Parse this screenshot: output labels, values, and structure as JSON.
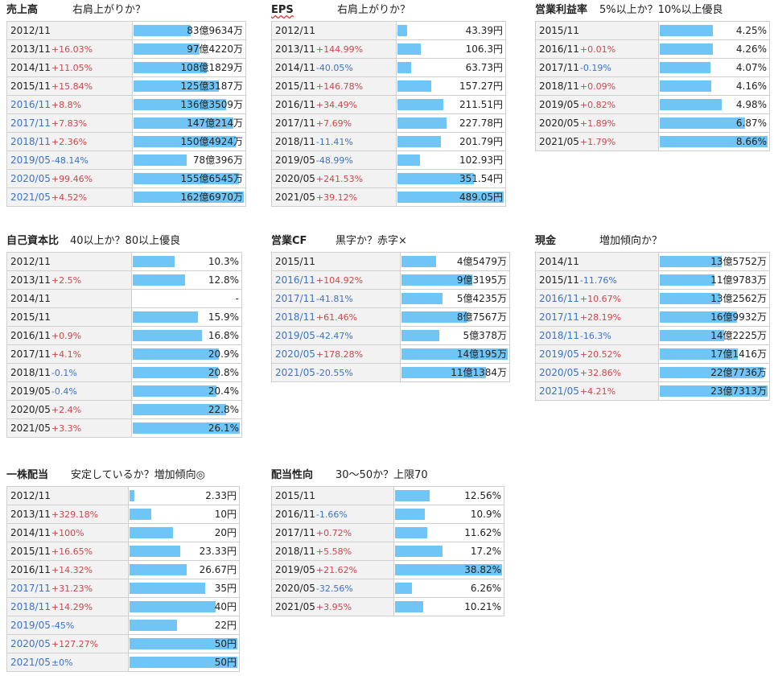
{
  "panels": [
    {
      "id": "sales",
      "title": "売上高",
      "subtitle": "右肩上がりか？",
      "rows": [
        {
          "year": "2012/11",
          "change": "",
          "value": "83億9634万",
          "num": 83.96,
          "blue": false
        },
        {
          "year": "2013/11",
          "change": "+16.03%",
          "value": "97億4220万",
          "num": 97.42,
          "blue": false
        },
        {
          "year": "2014/11",
          "change": "+11.05%",
          "value": "108億1829万",
          "num": 108.18,
          "blue": false
        },
        {
          "year": "2015/11",
          "change": "+15.84%",
          "value": "125億3187万",
          "num": 125.32,
          "blue": false
        },
        {
          "year": "2016/11",
          "change": "+8.8%",
          "value": "136億3509万",
          "num": 136.35,
          "blue": true
        },
        {
          "year": "2017/11",
          "change": "+7.83%",
          "value": "147億214万",
          "num": 147.02,
          "blue": true
        },
        {
          "year": "2018/11",
          "change": "+2.36%",
          "value": "150億4924万",
          "num": 150.49,
          "blue": true
        },
        {
          "year": "2019/05",
          "change": "-48.14%",
          "value": "78億396万",
          "num": 78.04,
          "blue": true
        },
        {
          "year": "2020/05",
          "change": "+99.46%",
          "value": "155億6545万",
          "num": 155.65,
          "blue": true
        },
        {
          "year": "2021/05",
          "change": "+4.52%",
          "value": "162億6970万",
          "num": 162.7,
          "blue": true
        }
      ]
    },
    {
      "id": "eps",
      "title": "EPS",
      "subtitle": "右肩上がりか？",
      "rows": [
        {
          "year": "2012/11",
          "change": "",
          "value": "43.39円",
          "num": 43.39,
          "blue": false
        },
        {
          "year": "2013/11",
          "change": "+144.99%",
          "value": "106.3円",
          "num": 106.3,
          "blue": false
        },
        {
          "year": "2014/11",
          "change": "-40.05%",
          "value": "63.73円",
          "num": 63.73,
          "blue": false
        },
        {
          "year": "2015/11",
          "change": "+146.78%",
          "value": "157.27円",
          "num": 157.27,
          "blue": false
        },
        {
          "year": "2016/11",
          "change": "+34.49%",
          "value": "211.51円",
          "num": 211.51,
          "blue": false
        },
        {
          "year": "2017/11",
          "change": "+7.69%",
          "value": "227.78円",
          "num": 227.78,
          "blue": false
        },
        {
          "year": "2018/11",
          "change": "-11.41%",
          "value": "201.79円",
          "num": 201.79,
          "blue": false
        },
        {
          "year": "2019/05",
          "change": "-48.99%",
          "value": "102.93円",
          "num": 102.93,
          "blue": false
        },
        {
          "year": "2020/05",
          "change": "+241.53%",
          "value": "351.54円",
          "num": 351.54,
          "blue": false
        },
        {
          "year": "2021/05",
          "change": "+39.12%",
          "value": "489.05円",
          "num": 489.05,
          "blue": false
        }
      ]
    },
    {
      "id": "margin",
      "title": "営業利益率",
      "subtitle": "5%以上か？10%以上優良",
      "rows": [
        {
          "year": "2015/11",
          "change": "",
          "value": "4.25%",
          "num": 4.25,
          "blue": false
        },
        {
          "year": "2016/11",
          "change": "+0.01%",
          "value": "4.26%",
          "num": 4.26,
          "blue": false
        },
        {
          "year": "2017/11",
          "change": "-0.19%",
          "value": "4.07%",
          "num": 4.07,
          "blue": false
        },
        {
          "year": "2018/11",
          "change": "+0.09%",
          "value": "4.16%",
          "num": 4.16,
          "blue": false
        },
        {
          "year": "2019/05",
          "change": "+0.82%",
          "value": "4.98%",
          "num": 4.98,
          "blue": false
        },
        {
          "year": "2020/05",
          "change": "+1.89%",
          "value": "6.87%",
          "num": 6.87,
          "blue": false
        },
        {
          "year": "2021/05",
          "change": "+1.79%",
          "value": "8.66%",
          "num": 8.66,
          "blue": false
        }
      ]
    },
    {
      "id": "equity",
      "title": "自己資本比",
      "subtitle": "40以上か？80以上優良",
      "rows": [
        {
          "year": "2012/11",
          "change": "",
          "value": "10.3%",
          "num": 10.3,
          "blue": false
        },
        {
          "year": "2013/11",
          "change": "+2.5%",
          "value": "12.8%",
          "num": 12.8,
          "blue": false
        },
        {
          "year": "2014/11",
          "change": "",
          "value": "-",
          "num": 0,
          "blue": false
        },
        {
          "year": "2015/11",
          "change": "",
          "value": "15.9%",
          "num": 15.9,
          "blue": false
        },
        {
          "year": "2016/11",
          "change": "+0.9%",
          "value": "16.8%",
          "num": 16.8,
          "blue": false
        },
        {
          "year": "2017/11",
          "change": "+4.1%",
          "value": "20.9%",
          "num": 20.9,
          "blue": false
        },
        {
          "year": "2018/11",
          "change": "-0.1%",
          "value": "20.8%",
          "num": 20.8,
          "blue": false
        },
        {
          "year": "2019/05",
          "change": "-0.4%",
          "value": "20.4%",
          "num": 20.4,
          "blue": false
        },
        {
          "year": "2020/05",
          "change": "+2.4%",
          "value": "22.8%",
          "num": 22.8,
          "blue": false
        },
        {
          "year": "2021/05",
          "change": "+3.3%",
          "value": "26.1%",
          "num": 26.1,
          "blue": false
        }
      ]
    },
    {
      "id": "opcf",
      "title": "営業CF",
      "subtitle": "黒字か？赤字×",
      "rows": [
        {
          "year": "2015/11",
          "change": "",
          "value": "4億5479万",
          "num": 4.55,
          "blue": false
        },
        {
          "year": "2016/11",
          "change": "+104.92%",
          "value": "9億3195万",
          "num": 9.32,
          "blue": true
        },
        {
          "year": "2017/11",
          "change": "-41.81%",
          "value": "5億4235万",
          "num": 5.42,
          "blue": true
        },
        {
          "year": "2018/11",
          "change": "+61.46%",
          "value": "8億7567万",
          "num": 8.76,
          "blue": true
        },
        {
          "year": "2019/05",
          "change": "-42.47%",
          "value": "5億378万",
          "num": 5.04,
          "blue": true
        },
        {
          "year": "2020/05",
          "change": "+178.28%",
          "value": "14億195万",
          "num": 14.02,
          "blue": true
        },
        {
          "year": "2021/05",
          "change": "-20.55%",
          "value": "11億1384万",
          "num": 11.14,
          "blue": true
        }
      ]
    },
    {
      "id": "cash",
      "title": "現金",
      "subtitle": "増加傾向か？",
      "rows": [
        {
          "year": "2014/11",
          "change": "",
          "value": "13億5752万",
          "num": 13.58,
          "blue": false
        },
        {
          "year": "2015/11",
          "change": "-11.76%",
          "value": "11億9783万",
          "num": 11.98,
          "blue": false
        },
        {
          "year": "2016/11",
          "change": "+10.67%",
          "value": "13億2562万",
          "num": 13.26,
          "blue": true
        },
        {
          "year": "2017/11",
          "change": "+28.19%",
          "value": "16億9932万",
          "num": 16.99,
          "blue": true
        },
        {
          "year": "2018/11",
          "change": "-16.3%",
          "value": "14億2225万",
          "num": 14.22,
          "blue": true
        },
        {
          "year": "2019/05",
          "change": "+20.52%",
          "value": "17億1416万",
          "num": 17.14,
          "blue": true
        },
        {
          "year": "2020/05",
          "change": "+32.86%",
          "value": "22億7736万",
          "num": 22.77,
          "blue": true
        },
        {
          "year": "2021/05",
          "change": "+4.21%",
          "value": "23億7313万",
          "num": 23.73,
          "blue": true
        }
      ]
    },
    {
      "id": "dividend",
      "title": "一株配当",
      "subtitle": "安定しているか？増加傾向◎",
      "rows": [
        {
          "year": "2012/11",
          "change": "",
          "value": "2.33円",
          "num": 2.33,
          "blue": false
        },
        {
          "year": "2013/11",
          "change": "+329.18%",
          "value": "10円",
          "num": 10,
          "blue": false
        },
        {
          "year": "2014/11",
          "change": "+100%",
          "value": "20円",
          "num": 20,
          "blue": false
        },
        {
          "year": "2015/11",
          "change": "+16.65%",
          "value": "23.33円",
          "num": 23.33,
          "blue": false
        },
        {
          "year": "2016/11",
          "change": "+14.32%",
          "value": "26.67円",
          "num": 26.67,
          "blue": false
        },
        {
          "year": "2017/11",
          "change": "+31.23%",
          "value": "35円",
          "num": 35,
          "blue": true
        },
        {
          "year": "2018/11",
          "change": "+14.29%",
          "value": "40円",
          "num": 40,
          "blue": true
        },
        {
          "year": "2019/05",
          "change": "-45%",
          "value": "22円",
          "num": 22,
          "blue": true
        },
        {
          "year": "2020/05",
          "change": "+127.27%",
          "value": "50円",
          "num": 50,
          "blue": true
        },
        {
          "year": "2021/05",
          "change": "±0%",
          "value": "50円",
          "num": 50,
          "blue": true
        }
      ]
    },
    {
      "id": "payout",
      "title": "配当性向",
      "subtitle": "30〜50か？上限70",
      "rows": [
        {
          "year": "2015/11",
          "change": "",
          "value": "12.56%",
          "num": 12.56,
          "blue": false
        },
        {
          "year": "2016/11",
          "change": "-1.66%",
          "value": "10.9%",
          "num": 10.9,
          "blue": false
        },
        {
          "year": "2017/11",
          "change": "+0.72%",
          "value": "11.62%",
          "num": 11.62,
          "blue": false
        },
        {
          "year": "2018/11",
          "change": "+5.58%",
          "value": "17.2%",
          "num": 17.2,
          "blue": false
        },
        {
          "year": "2019/05",
          "change": "+21.62%",
          "value": "38.82%",
          "num": 38.82,
          "blue": false
        },
        {
          "year": "2020/05",
          "change": "-32.56%",
          "value": "6.26%",
          "num": 6.26,
          "blue": false
        },
        {
          "year": "2021/05",
          "change": "+3.95%",
          "value": "10.21%",
          "num": 10.21,
          "blue": false
        }
      ]
    }
  ],
  "colors": {
    "bar": "#6fc6f6",
    "up": "#d0464b",
    "down": "#3b73c8",
    "label_bg": "#f2f2f2",
    "border": "#cfcfcf"
  },
  "chart_data": [
    {
      "type": "bar",
      "title": "売上高",
      "subtitle": "右肩上がりか？",
      "categories": [
        "2012/11",
        "2013/11",
        "2014/11",
        "2015/11",
        "2016/11",
        "2017/11",
        "2018/11",
        "2019/05",
        "2020/05",
        "2021/05"
      ],
      "values": [
        83.96,
        97.42,
        108.18,
        125.32,
        136.35,
        147.02,
        150.49,
        78.04,
        155.65,
        162.7
      ]
    },
    {
      "type": "bar",
      "title": "EPS",
      "subtitle": "右肩上がりか？",
      "categories": [
        "2012/11",
        "2013/11",
        "2014/11",
        "2015/11",
        "2016/11",
        "2017/11",
        "2018/11",
        "2019/05",
        "2020/05",
        "2021/05"
      ],
      "values": [
        43.39,
        106.3,
        63.73,
        157.27,
        211.51,
        227.78,
        201.79,
        102.93,
        351.54,
        489.05
      ]
    },
    {
      "type": "bar",
      "title": "営業利益率",
      "subtitle": "5%以上か？10%以上優良",
      "categories": [
        "2015/11",
        "2016/11",
        "2017/11",
        "2018/11",
        "2019/05",
        "2020/05",
        "2021/05"
      ],
      "values": [
        4.25,
        4.26,
        4.07,
        4.16,
        4.98,
        6.87,
        8.66
      ]
    },
    {
      "type": "bar",
      "title": "自己資本比",
      "subtitle": "40以上か？80以上優良",
      "categories": [
        "2012/11",
        "2013/11",
        "2014/11",
        "2015/11",
        "2016/11",
        "2017/11",
        "2018/11",
        "2019/05",
        "2020/05",
        "2021/05"
      ],
      "values": [
        10.3,
        12.8,
        null,
        15.9,
        16.8,
        20.9,
        20.8,
        20.4,
        22.8,
        26.1
      ]
    },
    {
      "type": "bar",
      "title": "営業CF",
      "subtitle": "黒字か？赤字×",
      "categories": [
        "2015/11",
        "2016/11",
        "2017/11",
        "2018/11",
        "2019/05",
        "2020/05",
        "2021/05"
      ],
      "values": [
        4.55,
        9.32,
        5.42,
        8.76,
        5.04,
        14.02,
        11.14
      ]
    },
    {
      "type": "bar",
      "title": "現金",
      "subtitle": "増加傾向か？",
      "categories": [
        "2014/11",
        "2015/11",
        "2016/11",
        "2017/11",
        "2018/11",
        "2019/05",
        "2020/05",
        "2021/05"
      ],
      "values": [
        13.58,
        11.98,
        13.26,
        16.99,
        14.22,
        17.14,
        22.77,
        23.73
      ]
    },
    {
      "type": "bar",
      "title": "一株配当",
      "subtitle": "安定しているか？増加傾向◎",
      "categories": [
        "2012/11",
        "2013/11",
        "2014/11",
        "2015/11",
        "2016/11",
        "2017/11",
        "2018/11",
        "2019/05",
        "2020/05",
        "2021/05"
      ],
      "values": [
        2.33,
        10,
        20,
        23.33,
        26.67,
        35,
        40,
        22,
        50,
        50
      ]
    },
    {
      "type": "bar",
      "title": "配当性向",
      "subtitle": "30〜50か？上限70",
      "categories": [
        "2015/11",
        "2016/11",
        "2017/11",
        "2018/11",
        "2019/05",
        "2020/05",
        "2021/05"
      ],
      "values": [
        12.56,
        10.9,
        11.62,
        17.2,
        38.82,
        6.26,
        10.21
      ]
    }
  ]
}
